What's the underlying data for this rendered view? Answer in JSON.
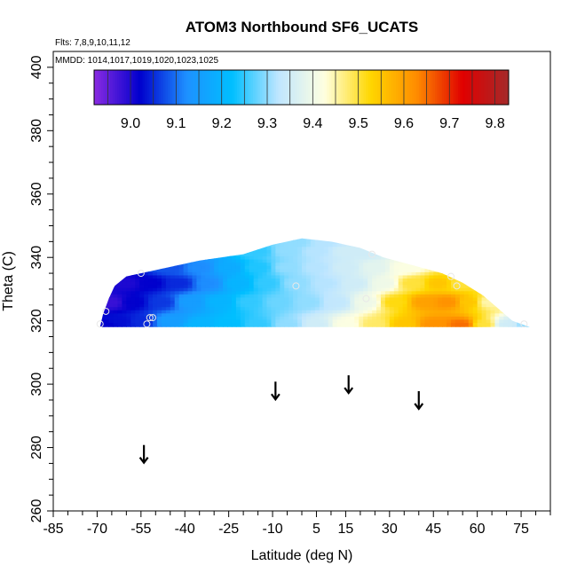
{
  "chart_data": {
    "type": "heatmap",
    "title": "ATOM3 Northbound SF6_UCATS",
    "subtitle_flights": "Flts: 7,8,9,10,11,12",
    "subtitle_dates": "MMDD: 1014,1017,1019,1020,1023,1025",
    "xlabel": "Latitude (deg N)",
    "ylabel": "Theta (C)",
    "xlim": [
      -85,
      85
    ],
    "ylim": [
      260,
      405
    ],
    "x_ticks": [
      "-85",
      "-70",
      "-55",
      "-40",
      "-25",
      "-10",
      "5",
      "15",
      "30",
      "45",
      "60",
      "75"
    ],
    "x_tick_values": [
      -85,
      -70,
      -55,
      -40,
      -25,
      -10,
      5,
      15,
      30,
      45,
      60,
      75
    ],
    "y_ticks": [
      "260",
      "280",
      "300",
      "320",
      "340",
      "360",
      "380",
      "400"
    ],
    "y_tick_values": [
      260,
      280,
      300,
      320,
      340,
      360,
      380,
      400
    ],
    "colorbar": {
      "min": 8.92,
      "max": 9.83,
      "tick_labels": [
        "9.0",
        "9.1",
        "9.2",
        "9.3",
        "9.4",
        "9.5",
        "9.6",
        "9.7",
        "9.8"
      ],
      "tick_values": [
        9.0,
        9.1,
        9.2,
        9.3,
        9.4,
        9.5,
        9.6,
        9.7,
        9.8
      ],
      "colors": [
        "#8a2be2",
        "#0000cd",
        "#1e90ff",
        "#00bfff",
        "#bfe6ff",
        "#ffffe0",
        "#ffd700",
        "#ff8c00",
        "#e00000",
        "#a52a2a"
      ]
    },
    "field_boundary": [
      [
        -69,
        318
      ],
      [
        -68,
        322
      ],
      [
        -66,
        327
      ],
      [
        -64,
        331
      ],
      [
        -60,
        334
      ],
      [
        -50,
        336
      ],
      [
        -35,
        339
      ],
      [
        -20,
        341
      ],
      [
        -10,
        344
      ],
      [
        0,
        346
      ],
      [
        10,
        345
      ],
      [
        20,
        343
      ],
      [
        28,
        340
      ],
      [
        40,
        337
      ],
      [
        48,
        335
      ],
      [
        55,
        332
      ],
      [
        62,
        328
      ],
      [
        67,
        324
      ],
      [
        72,
        320
      ],
      [
        78,
        318
      ]
    ],
    "field_samples": [
      [
        -68,
        319,
        9.02
      ],
      [
        -62,
        320,
        9.03
      ],
      [
        -55,
        320,
        9.05
      ],
      [
        -45,
        320,
        9.15
      ],
      [
        -35,
        319,
        9.2
      ],
      [
        -25,
        319,
        9.22
      ],
      [
        -15,
        319,
        9.25
      ],
      [
        -5,
        319,
        9.3
      ],
      [
        5,
        319,
        9.35
      ],
      [
        15,
        319,
        9.42
      ],
      [
        25,
        319,
        9.48
      ],
      [
        35,
        319,
        9.55
      ],
      [
        45,
        319,
        9.62
      ],
      [
        55,
        319,
        9.65
      ],
      [
        62,
        319,
        9.5
      ],
      [
        70,
        319,
        9.35
      ],
      [
        77,
        319,
        9.3
      ],
      [
        -65,
        326,
        8.98
      ],
      [
        -58,
        326,
        9.02
      ],
      [
        -48,
        326,
        9.06
      ],
      [
        -38,
        326,
        9.15
      ],
      [
        -28,
        326,
        9.2
      ],
      [
        -18,
        326,
        9.25
      ],
      [
        -8,
        326,
        9.28
      ],
      [
        2,
        326,
        9.3
      ],
      [
        12,
        326,
        9.33
      ],
      [
        22,
        326,
        9.4
      ],
      [
        32,
        326,
        9.52
      ],
      [
        42,
        326,
        9.6
      ],
      [
        50,
        326,
        9.62
      ],
      [
        57,
        326,
        9.55
      ],
      [
        64,
        326,
        9.45
      ],
      [
        -60,
        332,
        9.0
      ],
      [
        -52,
        332,
        9.02
      ],
      [
        -42,
        332,
        9.05
      ],
      [
        -32,
        332,
        9.12
      ],
      [
        -22,
        332,
        9.2
      ],
      [
        -12,
        332,
        9.25
      ],
      [
        -2,
        332,
        9.3
      ],
      [
        8,
        332,
        9.32
      ],
      [
        18,
        332,
        9.35
      ],
      [
        28,
        332,
        9.4
      ],
      [
        38,
        332,
        9.5
      ],
      [
        47,
        332,
        9.55
      ],
      [
        54,
        332,
        9.5
      ],
      [
        -45,
        337,
        9.08
      ],
      [
        -35,
        337,
        9.12
      ],
      [
        -25,
        337,
        9.18
      ],
      [
        -15,
        337,
        9.24
      ],
      [
        -5,
        337,
        9.3
      ],
      [
        5,
        337,
        9.32
      ],
      [
        15,
        337,
        9.35
      ],
      [
        25,
        337,
        9.38
      ],
      [
        35,
        337,
        9.42
      ],
      [
        -15,
        342,
        9.25
      ],
      [
        -5,
        342,
        9.3
      ],
      [
        5,
        342,
        9.32
      ],
      [
        15,
        342,
        9.35
      ],
      [
        22,
        342,
        9.35
      ],
      [
        -2,
        345,
        9.3
      ],
      [
        8,
        345,
        9.32
      ]
    ],
    "sample_points": [
      [
        -69,
        319
      ],
      [
        -67,
        323
      ],
      [
        -55,
        335
      ],
      [
        -53,
        319
      ],
      [
        -52,
        321
      ],
      [
        -51,
        321
      ],
      [
        -2,
        331
      ],
      [
        22,
        327
      ],
      [
        24,
        341
      ],
      [
        51,
        334
      ],
      [
        53,
        331
      ],
      [
        76,
        319
      ]
    ],
    "arrows": [
      [
        -54,
        278
      ],
      [
        -9,
        298
      ],
      [
        16,
        300
      ],
      [
        40,
        295
      ]
    ]
  }
}
